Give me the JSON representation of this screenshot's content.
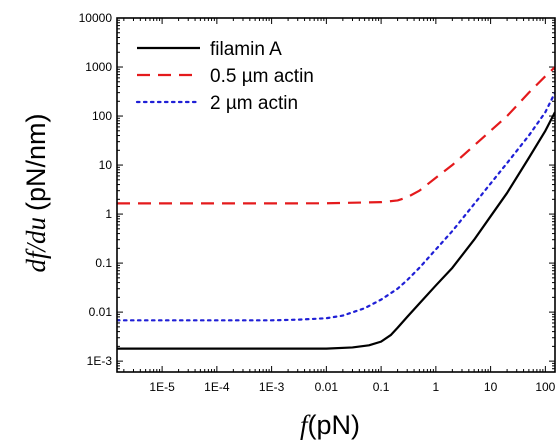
{
  "chart_data": {
    "type": "line",
    "title": "",
    "xlabel": {
      "symbol": "f",
      "unit": "(pN)"
    },
    "ylabel": {
      "symbol": "df/du",
      "unit": "(pN/nm)"
    },
    "x_scale": "log",
    "y_scale": "log",
    "xlim": [
      1.5e-06,
      150
    ],
    "ylim": [
      0.0006,
      10000
    ],
    "x_ticks": [
      {
        "value": 1e-05,
        "label": "1E-5"
      },
      {
        "value": 0.0001,
        "label": "1E-4"
      },
      {
        "value": 0.001,
        "label": "1E-3"
      },
      {
        "value": 0.01,
        "label": "0.01"
      },
      {
        "value": 0.1,
        "label": "0.1"
      },
      {
        "value": 1,
        "label": "1"
      },
      {
        "value": 10,
        "label": "10"
      },
      {
        "value": 100,
        "label": "100"
      }
    ],
    "y_ticks": [
      {
        "value": 0.001,
        "label": "1E-3"
      },
      {
        "value": 0.01,
        "label": "0.01"
      },
      {
        "value": 0.1,
        "label": "0.1"
      },
      {
        "value": 1,
        "label": "1"
      },
      {
        "value": 10,
        "label": "10"
      },
      {
        "value": 100,
        "label": "100"
      },
      {
        "value": 1000,
        "label": "1000"
      },
      {
        "value": 10000,
        "label": "10000"
      }
    ],
    "grid": false,
    "legend_position": "top-left",
    "series": [
      {
        "name": "filamin A",
        "color": "#000000",
        "dash": "solid",
        "x": [
          1.5e-06,
          1e-05,
          0.0001,
          0.001,
          0.01,
          0.03,
          0.06,
          0.1,
          0.15,
          0.2,
          0.3,
          0.5,
          1,
          2,
          5,
          10,
          20,
          50,
          100,
          150
        ],
        "y": [
          0.0018,
          0.0018,
          0.0018,
          0.0018,
          0.0018,
          0.0019,
          0.0021,
          0.0025,
          0.0034,
          0.0048,
          0.008,
          0.015,
          0.035,
          0.08,
          0.3,
          0.9,
          2.7,
          14,
          50,
          120
        ]
      },
      {
        "name": "0.5 µm actin",
        "color": "#e41a1c",
        "dash": "dashed",
        "x": [
          1.5e-06,
          1e-05,
          0.0001,
          0.001,
          0.01,
          0.1,
          0.2,
          0.3,
          0.5,
          1,
          2,
          5,
          10,
          20,
          50,
          100,
          150
        ],
        "y": [
          1.65,
          1.65,
          1.65,
          1.65,
          1.66,
          1.75,
          1.9,
          2.2,
          3,
          5.5,
          10,
          25,
          50,
          100,
          300,
          650,
          1000
        ]
      },
      {
        "name": "2 µm actin",
        "color": "#1f1fd6",
        "dash": "dotted",
        "x": [
          1.5e-06,
          1e-05,
          0.0001,
          0.001,
          0.003,
          0.01,
          0.02,
          0.05,
          0.1,
          0.2,
          0.3,
          0.5,
          1,
          2,
          5,
          10,
          20,
          50,
          100,
          150
        ],
        "y": [
          0.0068,
          0.0068,
          0.0068,
          0.0068,
          0.007,
          0.0075,
          0.0085,
          0.012,
          0.018,
          0.03,
          0.045,
          0.08,
          0.19,
          0.45,
          1.6,
          4.2,
          11,
          40,
          120,
          300
        ]
      }
    ]
  }
}
